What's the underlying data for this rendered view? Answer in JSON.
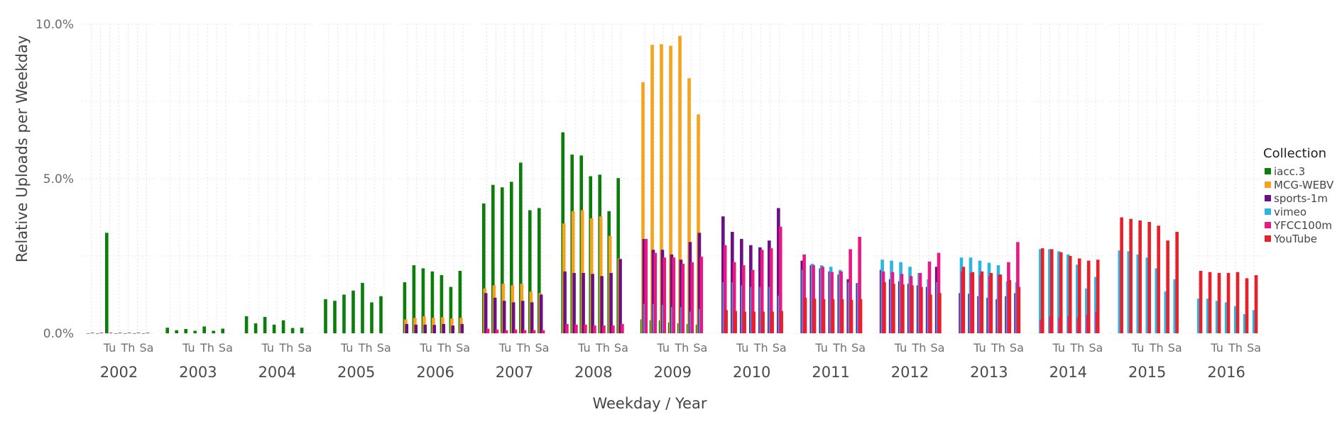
{
  "chart_data": {
    "type": "bar",
    "ylabel": "Relative Uploads per Weekday",
    "xlabel": "Weekday / Year",
    "ylim": [
      0,
      10
    ],
    "yticks": [
      {
        "value": 0,
        "label": "0.0%"
      },
      {
        "value": 5,
        "label": "5.0%"
      },
      {
        "value": 10,
        "label": "10.0%"
      }
    ],
    "weekdays": [
      "Su",
      "Mo",
      "Tu",
      "We",
      "Th",
      "Fr",
      "Sa"
    ],
    "weekday_tick_labels": [
      "Tu",
      "Th",
      "Sa"
    ],
    "years": [
      "2002",
      "2003",
      "2004",
      "2005",
      "2006",
      "2007",
      "2008",
      "2009",
      "2010",
      "2011",
      "2012",
      "2013",
      "2014",
      "2015",
      "2016"
    ],
    "grid": true,
    "legend": {
      "title": "Collection",
      "position": "right",
      "entries": [
        {
          "name": "iacc.3",
          "color": "#0b7d0b"
        },
        {
          "name": "MCG-WEBV",
          "color": "#f5a21c"
        },
        {
          "name": "sports-1m",
          "color": "#6a0f86"
        },
        {
          "name": "vimeo",
          "color": "#2cb4e2"
        },
        {
          "name": "YFCC100m",
          "color": "#ea1884"
        },
        {
          "name": "YouTube",
          "color": "#e8202a"
        }
      ]
    },
    "series": [
      {
        "name": "iacc.3",
        "values": {
          "2002": [
            0,
            0,
            3.25,
            0,
            0,
            0,
            0
          ],
          "2003": [
            0.18,
            0.1,
            0.14,
            0.08,
            0.22,
            0.08,
            0.15
          ],
          "2004": [
            0.55,
            0.32,
            0.53,
            0.28,
            0.42,
            0.17,
            0.18
          ],
          "2005": [
            1.1,
            1.05,
            1.25,
            1.38,
            1.63,
            1.0,
            1.2
          ],
          "2006": [
            1.65,
            2.2,
            2.1,
            2.0,
            1.88,
            1.5,
            2.02
          ],
          "2007": [
            4.2,
            4.8,
            4.72,
            4.9,
            5.52,
            3.98,
            4.05
          ],
          "2008": [
            6.5,
            5.78,
            5.75,
            5.08,
            5.13,
            3.95,
            5.02
          ],
          "2009": [
            0.45,
            0.42,
            0.42,
            0.35,
            0.32,
            0.3,
            0.28
          ]
        }
      },
      {
        "name": "MCG-WEBV",
        "values": {
          "2006": [
            0.45,
            0.5,
            0.55,
            0.5,
            0.52,
            0.48,
            0.5
          ],
          "2007": [
            1.45,
            1.55,
            1.6,
            1.55,
            1.6,
            1.35,
            1.3
          ],
          "2008": [
            3.55,
            3.95,
            3.98,
            3.72,
            3.78,
            3.15,
            2.42
          ],
          "2009": [
            8.12,
            9.33,
            9.35,
            9.3,
            9.62,
            8.25,
            7.08
          ]
        }
      },
      {
        "name": "sports-1m",
        "values": {
          "2006": [
            0.3,
            0.28,
            0.28,
            0.27,
            0.3,
            0.25,
            0.3
          ],
          "2007": [
            1.3,
            1.15,
            1.05,
            1.0,
            1.05,
            1.0,
            1.25
          ],
          "2008": [
            2.0,
            1.95,
            1.95,
            1.92,
            1.85,
            1.95,
            2.4
          ],
          "2009": [
            3.05,
            2.7,
            2.7,
            2.55,
            2.38,
            2.95,
            3.25
          ],
          "2010": [
            3.78,
            3.28,
            3.05,
            2.85,
            2.78,
            3.0,
            4.05
          ],
          "2011": [
            2.35,
            2.2,
            2.1,
            2.0,
            1.9,
            1.75,
            1.62
          ],
          "2012": [
            2.05,
            1.75,
            1.68,
            1.6,
            1.55,
            1.5,
            2.15
          ],
          "2013": [
            1.3,
            1.28,
            1.2,
            1.15,
            1.1,
            1.2,
            1.3
          ]
        }
      },
      {
        "name": "vimeo",
        "values": {
          "2009": [
            0.95,
            0.95,
            0.92,
            0.85,
            0.85,
            0.7,
            0.78
          ],
          "2010": [
            1.65,
            1.65,
            1.55,
            1.5,
            1.5,
            1.5,
            1.22
          ],
          "2011": [
            2.05,
            2.25,
            2.2,
            2.15,
            2.05,
            1.65,
            1.6
          ],
          "2012": [
            2.38,
            2.35,
            2.3,
            2.15,
            1.95,
            1.75,
            1.65
          ],
          "2013": [
            2.45,
            2.45,
            2.35,
            2.28,
            2.2,
            1.68,
            1.65
          ],
          "2014": [
            2.72,
            2.72,
            2.65,
            2.55,
            2.22,
            1.45,
            1.82
          ],
          "2015": [
            2.68,
            2.65,
            2.55,
            2.45,
            2.1,
            1.35,
            1.75
          ],
          "2016": [
            1.12,
            1.12,
            1.05,
            1.0,
            0.88,
            0.62,
            0.75
          ]
        }
      },
      {
        "name": "YFCC100m",
        "values": {
          "2002": [
            0.02,
            0.02,
            0.02,
            0.02,
            0.02,
            0.02,
            0.02
          ],
          "2007": [
            0.15,
            0.12,
            0.1,
            0.12,
            0.1,
            0.1,
            0.1
          ],
          "2008": [
            0.3,
            0.28,
            0.28,
            0.25,
            0.25,
            0.25,
            0.3
          ],
          "2009": [
            3.05,
            2.6,
            2.45,
            2.45,
            2.25,
            2.3,
            2.48
          ],
          "2010": [
            2.85,
            2.3,
            2.2,
            2.05,
            2.7,
            2.75,
            3.45
          ],
          "2011": [
            2.55,
            2.2,
            2.15,
            1.98,
            2.0,
            2.72,
            3.12
          ],
          "2012": [
            2.0,
            1.98,
            1.92,
            1.85,
            1.95,
            2.32,
            2.6
          ],
          "2013": [
            2.0,
            1.95,
            1.88,
            1.85,
            1.9,
            2.3,
            2.95
          ],
          "2014": [
            0.45,
            0.55,
            0.52,
            0.55,
            0.5,
            0.6,
            0.7
          ]
        }
      },
      {
        "name": "YouTube",
        "values": {
          "2010": [
            0.75,
            0.72,
            0.7,
            0.7,
            0.7,
            0.7,
            0.72
          ],
          "2011": [
            1.15,
            1.12,
            1.1,
            1.1,
            1.1,
            1.08,
            1.1
          ],
          "2012": [
            1.65,
            1.6,
            1.58,
            1.55,
            1.5,
            1.25,
            1.3
          ],
          "2013": [
            2.15,
            1.98,
            2.0,
            1.95,
            1.9,
            1.72,
            1.5
          ],
          "2014": [
            2.75,
            2.72,
            2.62,
            2.5,
            2.42,
            2.35,
            2.38
          ],
          "2015": [
            3.75,
            3.7,
            3.65,
            3.6,
            3.48,
            3.0,
            3.28
          ],
          "2016": [
            2.02,
            1.98,
            1.95,
            1.95,
            1.98,
            1.78,
            1.88
          ]
        }
      }
    ]
  }
}
